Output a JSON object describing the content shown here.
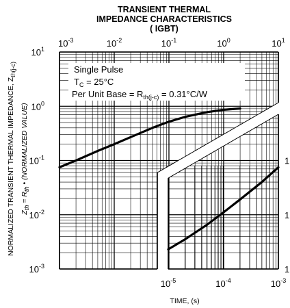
{
  "chart_data": {
    "type": "line",
    "title": [
      "TRANSIENT THERMAL",
      "IMPEDANCE CHARACTERISTICS",
      "( IGBT)"
    ],
    "xlabel": "TIME, (s)",
    "ylabel_line1": "NORMALIZED TRANSIENT THERMAL IMPEDANCE, Z",
    "ylabel_line1_sub": "th(j-c)",
    "ylabel_line2_a": "Z",
    "ylabel_line2_a_sub": "th",
    "ylabel_line2_b": " = R",
    "ylabel_line2_b_sub": "th",
    "ylabel_line2_c": " • (NORMALIZED VALUE)",
    "y_scale": "log",
    "x_scale": "log",
    "ylim": [
      0.001,
      10
    ],
    "y_ticks": [
      {
        "base": "10",
        "exp": "1"
      },
      {
        "base": "10",
        "exp": "0"
      },
      {
        "base": "10",
        "exp": "-1"
      },
      {
        "base": "10",
        "exp": "-2"
      },
      {
        "base": "10",
        "exp": "-3"
      }
    ],
    "x_top_ticks": [
      {
        "base": "10",
        "exp": "-3"
      },
      {
        "base": "10",
        "exp": "-2"
      },
      {
        "base": "10",
        "exp": "-1"
      },
      {
        "base": "10",
        "exp": "0"
      },
      {
        "base": "10",
        "exp": "1"
      }
    ],
    "x_bottom_ticks": [
      {
        "base": "10",
        "exp": "-5"
      },
      {
        "base": "10",
        "exp": "-4"
      },
      {
        "base": "10",
        "exp": "-3"
      }
    ],
    "right_axis_ticks": [
      "1",
      "1",
      "1"
    ],
    "annotations": {
      "line1": "Single Pulse",
      "line2_a": "T",
      "line2_sub": "C",
      "line2_b": " = 25°C",
      "line3_a": "Per Unit Base = R",
      "line3_sub": "th(j-c)",
      "line3_b": " = 0.31°C/W"
    },
    "grid": true,
    "series": [
      {
        "x_axis": "top",
        "x": [
          0.001,
          0.002,
          0.005,
          0.01,
          0.02,
          0.05,
          0.1,
          0.2,
          0.5,
          1,
          2
        ],
        "y": [
          0.075,
          0.1,
          0.15,
          0.2,
          0.27,
          0.4,
          0.52,
          0.64,
          0.78,
          0.86,
          0.91
        ]
      },
      {
        "x_axis": "bottom",
        "x": [
          1e-05,
          2e-05,
          5e-05,
          0.0001,
          0.0002,
          0.0005,
          0.001
        ],
        "y": [
          0.0023,
          0.0035,
          0.0065,
          0.011,
          0.019,
          0.04,
          0.075
        ]
      }
    ]
  }
}
